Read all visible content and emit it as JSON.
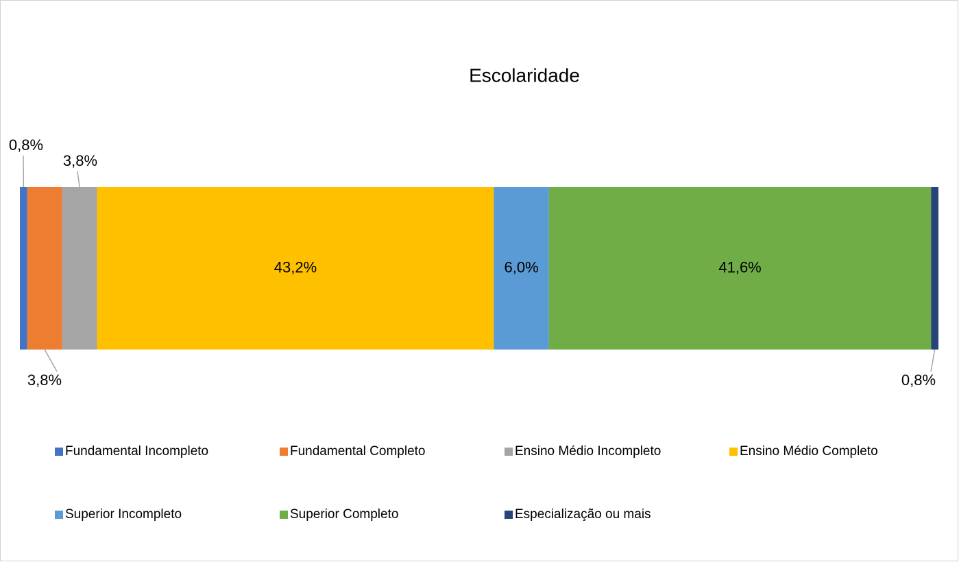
{
  "chart_data": {
    "type": "bar",
    "orientation": "horizontal",
    "stacked": true,
    "title": "Escolaridade",
    "xlim": [
      0,
      100
    ],
    "series": [
      {
        "name": "Fundamental Incompleto",
        "color": "#4472c4",
        "values": [
          0.8
        ],
        "value_labels": [
          "0,8%"
        ]
      },
      {
        "name": "Fundamental Completo",
        "color": "#ed7d31",
        "values": [
          3.8
        ],
        "value_labels": [
          "3,8%"
        ]
      },
      {
        "name": "Ensino Médio Incompleto",
        "color": "#a5a5a5",
        "values": [
          3.8
        ],
        "value_labels": [
          "3,8%"
        ]
      },
      {
        "name": "Ensino Médio Completo",
        "color": "#ffc000",
        "values": [
          43.2
        ],
        "value_labels": [
          "43,2%"
        ]
      },
      {
        "name": "Superior Incompleto",
        "color": "#5b9bd5",
        "values": [
          6.0
        ],
        "value_labels": [
          "6,0%"
        ]
      },
      {
        "name": "Superior Completo",
        "color": "#70ad47",
        "values": [
          41.6
        ],
        "value_labels": [
          "41,6%"
        ]
      },
      {
        "name": "Especialização ou mais",
        "color": "#264478",
        "values": [
          0.8
        ],
        "value_labels": [
          "0,8%"
        ]
      }
    ]
  }
}
